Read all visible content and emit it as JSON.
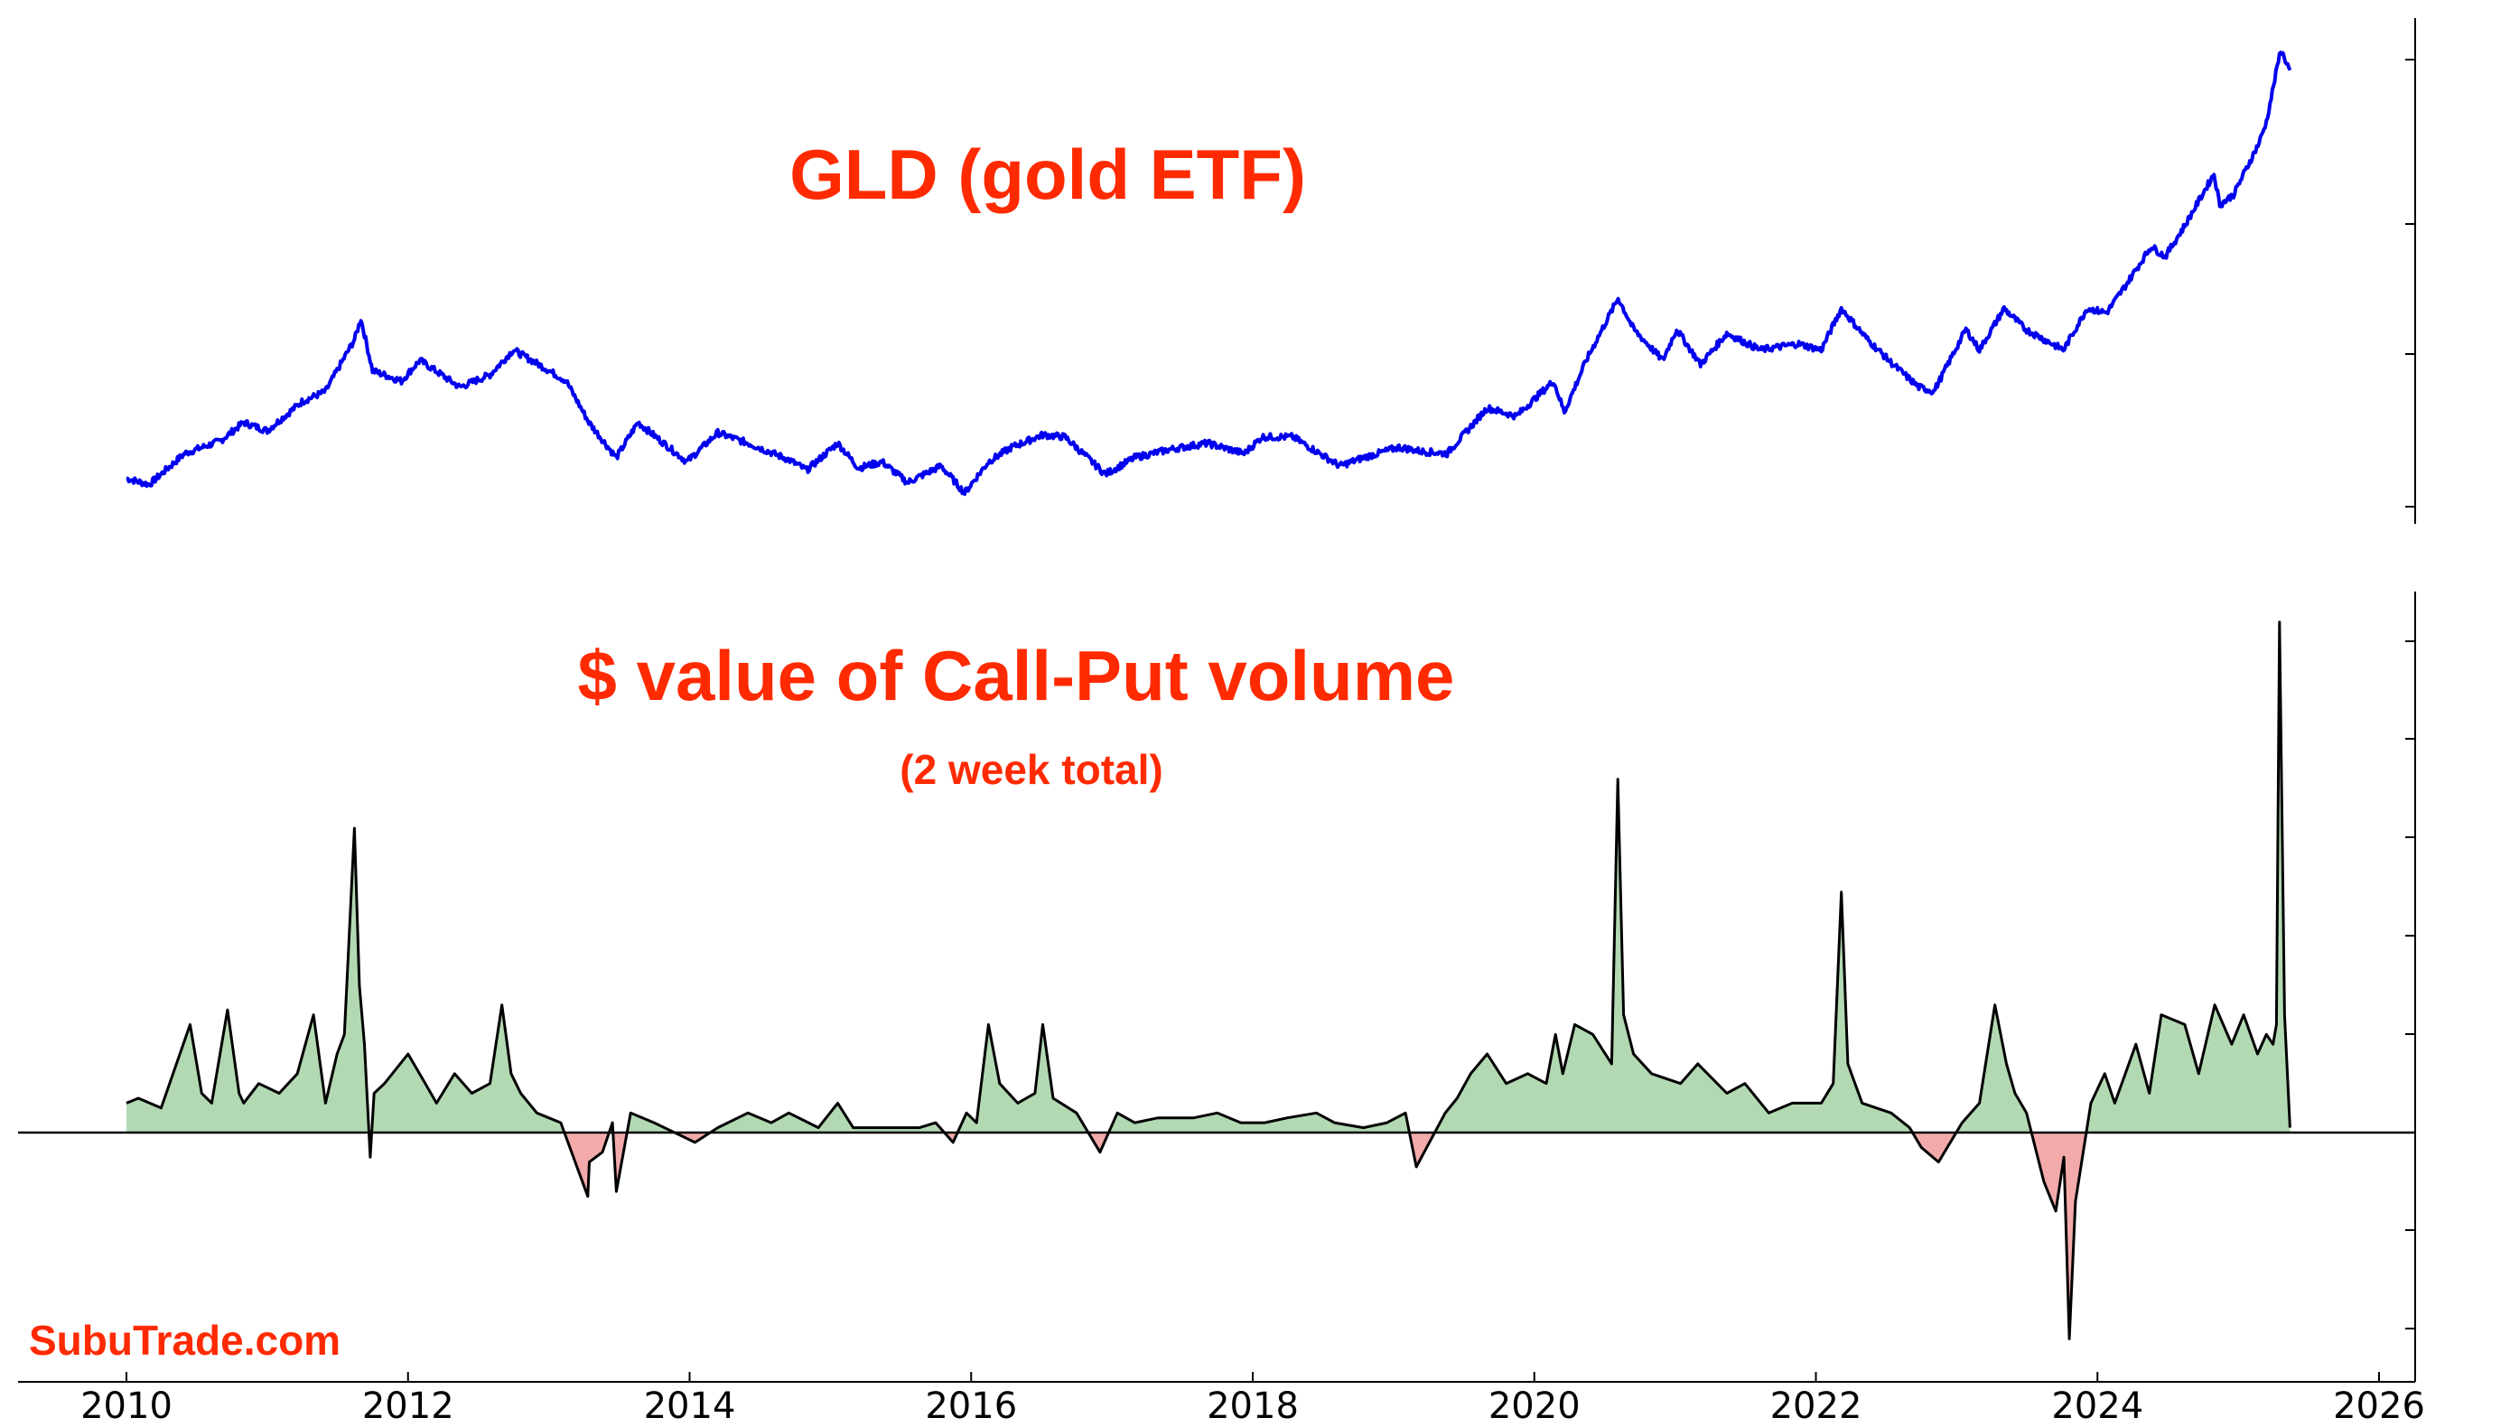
{
  "watermark": "SubuTrade.com",
  "chart_data": [
    {
      "type": "line",
      "title": "GLD (gold ETF)",
      "color": "#0000ee",
      "xlim": [
        "2010-01-01",
        "2026-03-01"
      ],
      "y_axis_side": "right",
      "grid": false,
      "series": [
        {
          "x": [
            "2010-01-01",
            "2010-03-01",
            "2010-06-01",
            "2010-09-01",
            "2010-11-01",
            "2011-01-01",
            "2011-04-01",
            "2011-06-01",
            "2011-08-15",
            "2011-09-01",
            "2011-10-01",
            "2011-12-15",
            "2012-02-01",
            "2012-05-15",
            "2012-08-01",
            "2012-10-01",
            "2012-12-15",
            "2013-02-15",
            "2013-04-15",
            "2013-06-25",
            "2013-08-20",
            "2013-12-25",
            "2014-03-15",
            "2014-06-01",
            "2014-09-15",
            "2014-11-01",
            "2015-01-20",
            "2015-03-15",
            "2015-05-15",
            "2015-07-20",
            "2015-10-15",
            "2015-12-15",
            "2016-02-15",
            "2016-04-15",
            "2016-07-05",
            "2016-09-01",
            "2016-12-15",
            "2017-03-01",
            "2017-06-01",
            "2017-09-05",
            "2017-12-10",
            "2018-01-25",
            "2018-04-15",
            "2018-08-15",
            "2018-10-15",
            "2019-01-15",
            "2019-03-15",
            "2019-05-20",
            "2019-09-01",
            "2019-11-15",
            "2020-02-20",
            "2020-03-19",
            "2020-05-15",
            "2020-08-06",
            "2020-09-15",
            "2020-11-30",
            "2021-01-05",
            "2021-03-08",
            "2021-05-15",
            "2021-08-10",
            "2021-11-15",
            "2022-01-15",
            "2022-03-08",
            "2022-05-15",
            "2022-07-20",
            "2022-09-25",
            "2022-11-03",
            "2023-01-25",
            "2023-03-01",
            "2023-05-04",
            "2023-06-28",
            "2023-10-05",
            "2023-12-05",
            "2024-01-25",
            "2024-03-10",
            "2024-05-20",
            "2024-06-25",
            "2024-08-15",
            "2024-10-30",
            "2024-11-14",
            "2024-12-20",
            "2025-02-24",
            "2025-03-15",
            "2025-04-21",
            "2025-05-15"
          ],
          "y": [
            108,
            105,
            120,
            126,
            135,
            131,
            145,
            150,
            175,
            185,
            160,
            155,
            165,
            152,
            158,
            170,
            162,
            155,
            135,
            118,
            135,
            116,
            130,
            125,
            117,
            112,
            125,
            113,
            116,
            106,
            114,
            101,
            116,
            123,
            129,
            128,
            110,
            118,
            122,
            125,
            120,
            128,
            128,
            114,
            118,
            123,
            121,
            120,
            142,
            138,
            155,
            140,
            165,
            195,
            180,
            165,
            180,
            163,
            178,
            170,
            173,
            170,
            190,
            175,
            163,
            152,
            150,
            180,
            170,
            190,
            180,
            170,
            190,
            188,
            200,
            220,
            215,
            230,
            255,
            240,
            245,
            270,
            280,
            315,
            305
          ]
        }
      ]
    },
    {
      "type": "area",
      "title": "$ value of Call-Put volume",
      "subtitle": "(2 week total)",
      "line_color": "#000000",
      "fill_positive": "#b3d9b3",
      "fill_negative": "#f2aaaa",
      "xlim": [
        "2010-01-01",
        "2026-03-01"
      ],
      "ylim": [
        -2.6,
        5.5
      ],
      "xticks": [
        "2010",
        "2012",
        "2014",
        "2016",
        "2018",
        "2020",
        "2022",
        "2024",
        "2026"
      ],
      "y_axis_side": "right",
      "zero_line": true,
      "grid": false,
      "series": [
        {
          "x": [
            "2010-01-01",
            "2010-02-01",
            "2010-04-01",
            "2010-06-15",
            "2010-07-15",
            "2010-08-10",
            "2010-09-20",
            "2010-10-20",
            "2010-11-01",
            "2010-12-10",
            "2011-02-01",
            "2011-03-20",
            "2011-05-01",
            "2011-06-01",
            "2011-07-01",
            "2011-07-20",
            "2011-08-15",
            "2011-08-28",
            "2011-09-10",
            "2011-09-25",
            "2011-10-05",
            "2011-11-01",
            "2012-01-01",
            "2012-02-15",
            "2012-03-15",
            "2012-05-01",
            "2012-06-15",
            "2012-08-01",
            "2012-09-01",
            "2012-09-25",
            "2012-10-20",
            "2012-12-01",
            "2013-02-01",
            "2013-04-12",
            "2013-04-16",
            "2013-05-20",
            "2013-06-15",
            "2013-06-25",
            "2013-08-01",
            "2013-10-01",
            "2014-01-15",
            "2014-03-15",
            "2014-06-01",
            "2014-08-01",
            "2014-09-15",
            "2014-12-01",
            "2015-01-20",
            "2015-03-01",
            "2015-06-01",
            "2015-08-20",
            "2015-10-01",
            "2015-11-15",
            "2015-12-20",
            "2016-01-15",
            "2016-02-15",
            "2016-03-15",
            "2016-05-01",
            "2016-06-15",
            "2016-07-05",
            "2016-08-01",
            "2016-10-01",
            "2016-12-01",
            "2017-01-15",
            "2017-03-01",
            "2017-05-01",
            "2017-08-01",
            "2017-10-01",
            "2017-12-01",
            "2018-02-01",
            "2018-04-01",
            "2018-06-15",
            "2018-08-01",
            "2018-10-15",
            "2018-12-15",
            "2019-02-01",
            "2019-03-01",
            "2019-05-15",
            "2019-06-15",
            "2019-07-20",
            "2019-09-01",
            "2019-10-20",
            "2019-12-15",
            "2020-02-01",
            "2020-02-25",
            "2020-03-15",
            "2020-04-15",
            "2020-06-01",
            "2020-07-20",
            "2020-08-05",
            "2020-08-20",
            "2020-09-15",
            "2020-11-01",
            "2021-01-15",
            "2021-03-01",
            "2021-05-15",
            "2021-07-01",
            "2021-09-01",
            "2021-11-01",
            "2022-01-15",
            "2022-02-15",
            "2022-03-08",
            "2022-03-25",
            "2022-05-01",
            "2022-07-15",
            "2022-09-01",
            "2022-10-01",
            "2022-11-15",
            "2023-01-15",
            "2023-03-01",
            "2023-04-10",
            "2023-05-10",
            "2023-06-01",
            "2023-07-01",
            "2023-08-15",
            "2023-09-15",
            "2023-10-06",
            "2023-10-20",
            "2023-11-05",
            "2023-12-15",
            "2024-01-20",
            "2024-02-15",
            "2024-04-10",
            "2024-05-15",
            "2024-06-15",
            "2024-08-15",
            "2024-09-20",
            "2024-11-01",
            "2024-12-15",
            "2025-01-15",
            "2025-02-20",
            "2025-03-15",
            "2025-04-01",
            "2025-04-10",
            "2025-04-18",
            "2025-05-01",
            "2025-05-15"
          ],
          "y": [
            0.3,
            0.35,
            0.25,
            1.1,
            0.4,
            0.3,
            1.25,
            0.4,
            0.3,
            0.5,
            0.4,
            0.6,
            1.2,
            0.3,
            0.8,
            1.0,
            3.1,
            1.5,
            0.9,
            -0.25,
            0.4,
            0.5,
            0.8,
            0.5,
            0.3,
            0.6,
            0.4,
            0.5,
            1.3,
            0.6,
            0.4,
            0.2,
            0.1,
            -0.65,
            -0.3,
            -0.2,
            0.1,
            -0.6,
            0.2,
            0.1,
            -0.1,
            0.05,
            0.2,
            0.1,
            0.2,
            0.05,
            0.3,
            0.05,
            0.05,
            0.05,
            0.1,
            -0.1,
            0.2,
            0.1,
            1.1,
            0.5,
            0.3,
            0.4,
            1.1,
            0.35,
            0.2,
            -0.2,
            0.2,
            0.1,
            0.15,
            0.15,
            0.2,
            0.1,
            0.1,
            0.15,
            0.2,
            0.1,
            0.05,
            0.1,
            0.2,
            -0.35,
            0.2,
            0.35,
            0.6,
            0.8,
            0.5,
            0.6,
            0.5,
            1.0,
            0.6,
            1.1,
            1.0,
            0.7,
            3.6,
            1.2,
            0.8,
            0.6,
            0.5,
            0.7,
            0.4,
            0.5,
            0.2,
            0.3,
            0.3,
            0.5,
            2.45,
            0.7,
            0.3,
            0.2,
            0.05,
            -0.15,
            -0.3,
            0.1,
            0.3,
            1.3,
            0.7,
            0.4,
            0.2,
            -0.5,
            -0.8,
            -0.25,
            -2.1,
            -0.7,
            0.3,
            0.6,
            0.3,
            0.9,
            0.4,
            1.2,
            1.1,
            0.6,
            1.3,
            0.9,
            1.2,
            0.8,
            1.0,
            0.9,
            1.1,
            5.2,
            1.2,
            0.05
          ]
        }
      ]
    }
  ]
}
